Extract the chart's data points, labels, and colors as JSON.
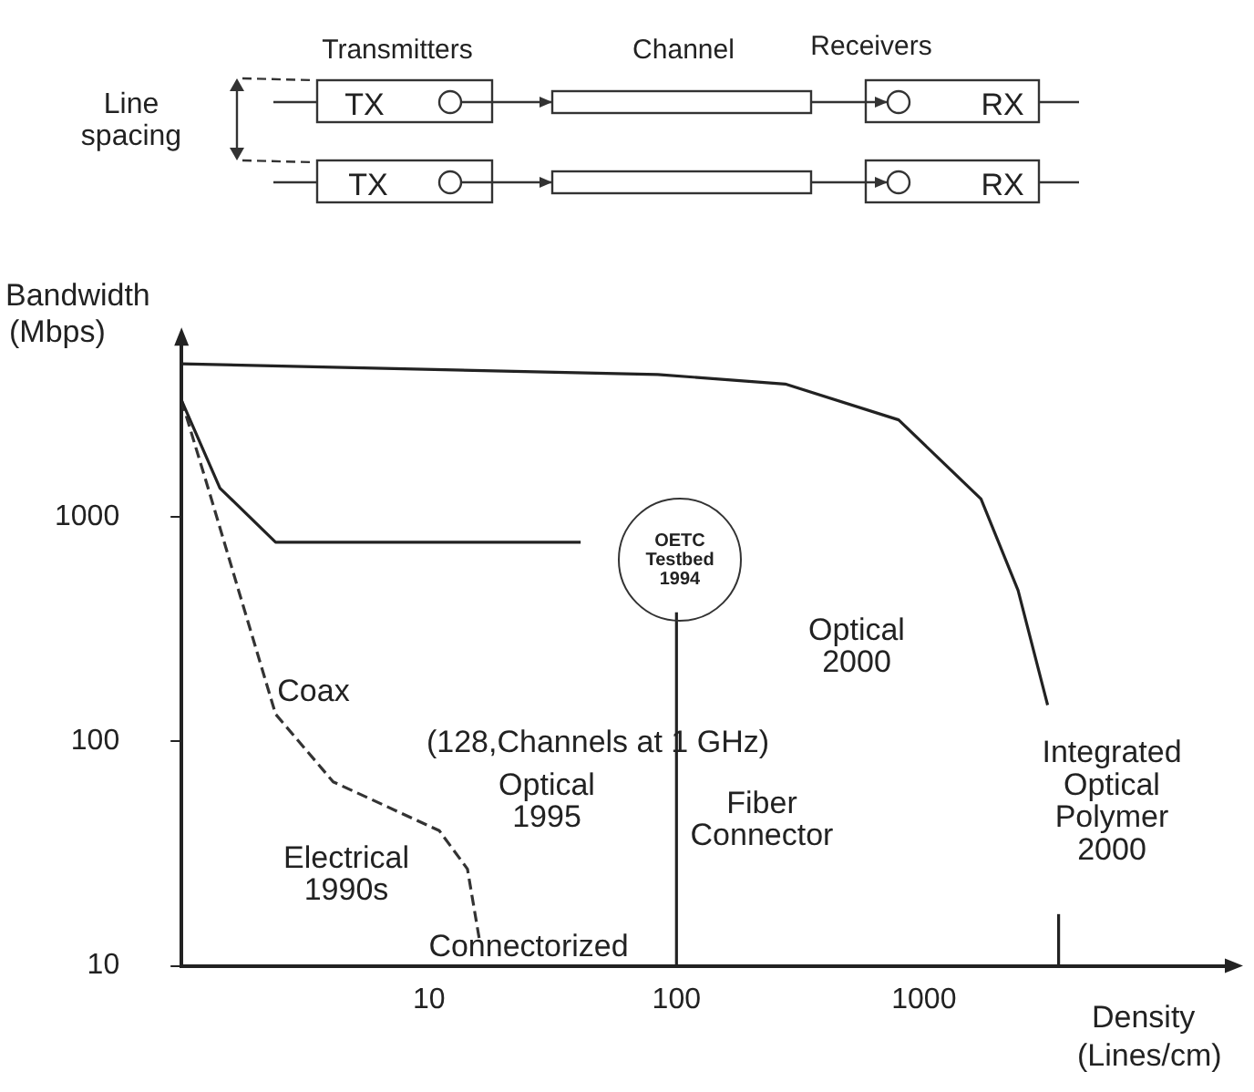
{
  "chart_data": {
    "type": "line",
    "log": "xy",
    "grid": false,
    "legend": false,
    "marker": "none",
    "xlabel": "Density\n(Lines/cm)",
    "ylabel": "Bandwidth\n(Mbps)",
    "xlim": [
      1,
      17000
    ],
    "xticks": [
      10,
      100,
      1000
    ],
    "ylim": [
      10,
      6000
    ],
    "yticks": [
      10,
      100,
      1000
    ],
    "series": [
      {
        "color": "#222222",
        "line_style": "solid",
        "x": [
          1,
          84,
          275,
          790,
          1700,
          2400,
          3160
        ],
        "values": [
          4800,
          4300,
          3900,
          2700,
          1200,
          470,
          145
        ]
      },
      {
        "color": "#222222",
        "line_style": "solid",
        "x": [
          1,
          1.43,
          2.4,
          41
        ],
        "values": [
          3300,
          1340,
          770,
          770
        ]
      },
      {
        "color": "#333333",
        "line_style": "dashed",
        "x": [
          1,
          1.3,
          1.7,
          2.4,
          4.1,
          11,
          14.3,
          16
        ],
        "values": [
          3300,
          1270,
          470,
          132,
          66,
          40,
          27,
          13
        ]
      },
      {
        "color": "#222222",
        "line_style": "solid",
        "x": [
          100,
          100
        ],
        "values": [
          10,
          375
        ]
      },
      {
        "color": "#222222",
        "line_style": "solid",
        "x": [
          3500,
          3500
        ],
        "values": [
          10,
          17
        ]
      }
    ],
    "annotations": [
      "Transmitters",
      "Channel",
      "Receivers",
      "Line\nspacing",
      "TX",
      "TX",
      "RX",
      "RX",
      "OETC\nTestbed\n1994",
      "Coax",
      "(128,Channels at 1 GHz)",
      "Optical\n1995",
      "Electrical\n1990s",
      "Connectorized",
      "Fiber\nConnector",
      "Optical\n2000",
      "Integrated\nOptical\nPolymer\n2000"
    ]
  }
}
